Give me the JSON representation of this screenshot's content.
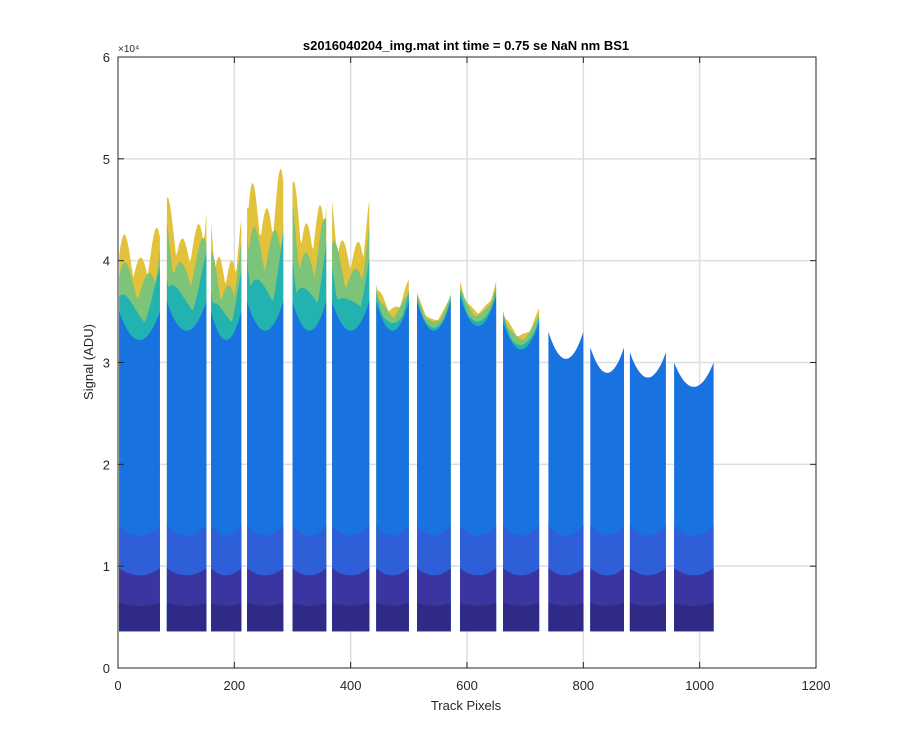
{
  "chart_data": {
    "type": "area",
    "title": "s2016040204_img.mat int time = 0.75 se  NaN nm BS1",
    "xlabel": "Track Pixels",
    "ylabel": "Signal (ADU)",
    "y_exponent_label": "×10⁴",
    "xlim": [
      0,
      1200
    ],
    "ylim": [
      0,
      60000
    ],
    "xticks": [
      0,
      200,
      400,
      600,
      800,
      1000,
      1200
    ],
    "xtick_labels": [
      "0",
      "200",
      "400",
      "600",
      "800",
      "1000",
      "1200"
    ],
    "yticks": [
      0,
      10000,
      20000,
      30000,
      40000,
      50000,
      60000
    ],
    "ytick_labels": [
      "0",
      "1",
      "2",
      "3",
      "4",
      "5",
      "6"
    ],
    "grid": true,
    "baseline": 3600,
    "colors": {
      "darkest": "#2e2a86",
      "dark": "#3a35a0",
      "mid": "#2f5fd8",
      "blue": "#1872e0",
      "teal": "#22b3b0",
      "green": "#7cc47a",
      "yellow": "#e2c23a"
    },
    "segments": [
      {
        "x_start": 2,
        "x_end": 72,
        "peak_top": 45000,
        "blue_top": 35000
      },
      {
        "x_start": 84,
        "x_end": 152,
        "peak_top": 47000,
        "blue_top": 36000
      },
      {
        "x_start": 160,
        "x_end": 212,
        "peak_top": 44000,
        "blue_top": 35000
      },
      {
        "x_start": 222,
        "x_end": 284,
        "peak_top": 51000,
        "blue_top": 36000
      },
      {
        "x_start": 300,
        "x_end": 358,
        "peak_top": 49000,
        "blue_top": 36000
      },
      {
        "x_start": 368,
        "x_end": 432,
        "peak_top": 46000,
        "blue_top": 36000
      },
      {
        "x_start": 444,
        "x_end": 500,
        "peak_top": 38500,
        "blue_top": 36000
      },
      {
        "x_start": 514,
        "x_end": 572,
        "peak_top": 37000,
        "blue_top": 36000
      },
      {
        "x_start": 588,
        "x_end": 650,
        "peak_top": 38000,
        "blue_top": 36500
      },
      {
        "x_start": 662,
        "x_end": 724,
        "peak_top": 35500,
        "blue_top": 34000
      },
      {
        "x_start": 740,
        "x_end": 800,
        "peak_top": 33000,
        "blue_top": 33000
      },
      {
        "x_start": 812,
        "x_end": 870,
        "peak_top": 31500,
        "blue_top": 31500
      },
      {
        "x_start": 880,
        "x_end": 942,
        "peak_top": 31000,
        "blue_top": 31000
      },
      {
        "x_start": 956,
        "x_end": 1024,
        "peak_top": 30000,
        "blue_top": 30000
      }
    ]
  }
}
